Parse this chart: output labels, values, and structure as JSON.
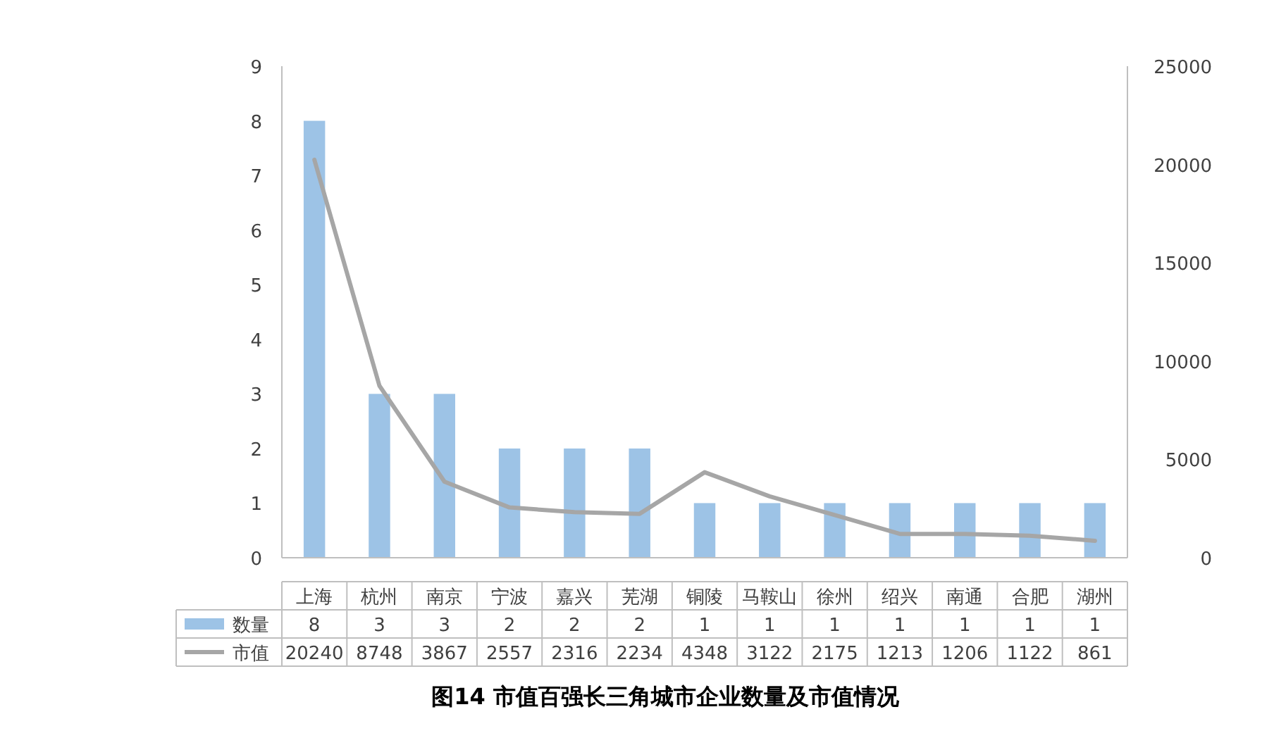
{
  "chart_data": {
    "type": "bar",
    "title": "图14 市值百强长三角城市企业数量及市值情况",
    "categories": [
      "上海",
      "杭州",
      "南京",
      "宁波",
      "嘉兴",
      "芜湖",
      "铜陵",
      "马鞍山",
      "徐州",
      "绍兴",
      "南通",
      "合肥",
      "湖州"
    ],
    "series": [
      {
        "name": "数量",
        "color": "#9dc3e6",
        "values": [
          8,
          3,
          3,
          2,
          2,
          2,
          1,
          1,
          1,
          1,
          1,
          1,
          1
        ]
      },
      {
        "name": "市值",
        "type": "line",
        "axis": "y2",
        "color": "#a6a6a6",
        "values": [
          20240,
          8748,
          3867,
          2557,
          2316,
          2234,
          4348,
          3122,
          2175,
          1213,
          1206,
          1122,
          861
        ]
      }
    ],
    "ylim": [
      0,
      9
    ],
    "yticks": [
      0,
      1,
      2,
      3,
      4,
      5,
      6,
      7,
      8,
      9
    ],
    "y2lim": [
      0,
      25000
    ],
    "y2ticks": [
      0,
      5000,
      10000,
      15000,
      20000,
      25000
    ],
    "data_labels": true,
    "legend": "bottom left",
    "grid": false
  }
}
